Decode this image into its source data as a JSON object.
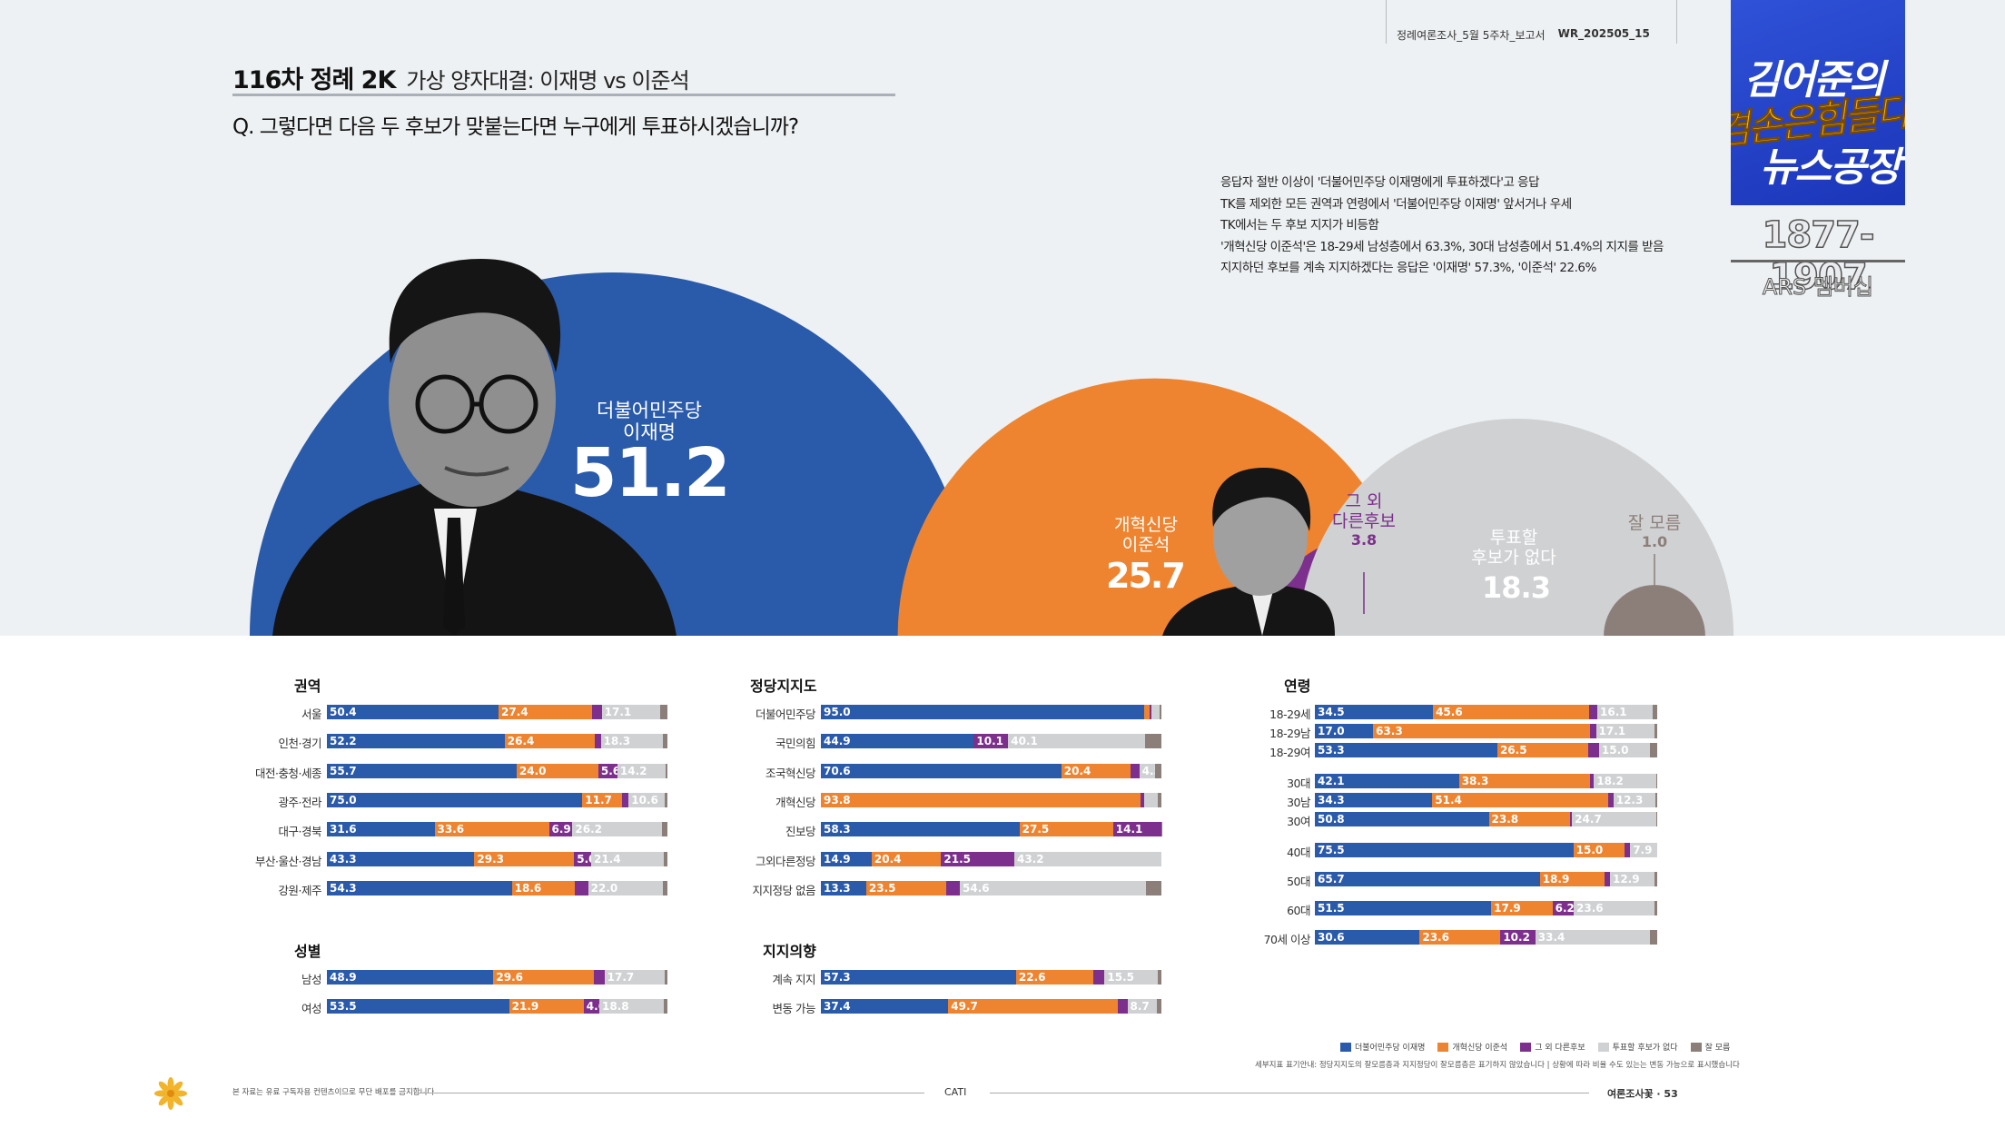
{
  "header": {
    "meta_left": "정례여론조사_5월 5주차_보고서",
    "meta_right": "WR_202505_15",
    "title_main": "116차 정례 2K",
    "title_sub": "가상 양자대결: 이재명 vs 이준석",
    "question": "Q. 그렇다면 다음 두 후보가 맞붙는다면 누구에게 투표하시겠습니까?"
  },
  "summary": [
    "응답자 절반 이상이 '더불어민주당 이재명에게 투표하겠다'고 응답",
    "TK를 제외한 모든 권역과 연령에서 '더불어민주당 이재명' 앞서거나 우세",
    "TK에서는 두 후보 지지가 비등함",
    "'개혁신당 이준석'은 18-29세 남성층에서 63.3%, 30대 남성층에서 51.4%의 지지를 받음",
    "지지하던 후보를 계속 지지하겠다는 응답은 '이재명' 57.3%, '이준석' 22.6%"
  ],
  "logo": {
    "line1": "김어준의",
    "line2": "겸손은힘들다",
    "line3": "뉴스공장",
    "years": "1877-1907",
    "membership": "ARS 멤버십"
  },
  "colors": {
    "lee_jm": "#2a5aaa",
    "lee_js": "#ee8430",
    "other": "#7d2f8d",
    "none": "#cfd1d3",
    "unsure": "#8c7f79",
    "top_bg": "#eef1f3"
  },
  "icons": {
    "footer": "flower-icon",
    "portrait_left": "portrait-lee-jaemyung",
    "portrait_right": "portrait-lee-junseok"
  },
  "main_result": {
    "lee_jm": {
      "party": "더불어민주당",
      "name": "이재명",
      "value": "51.2"
    },
    "lee_js": {
      "party": "개혁신당",
      "name": "이준석",
      "value": "25.7"
    },
    "other": {
      "label1": "그 외",
      "label2": "다른후보",
      "value": "3.8"
    },
    "none": {
      "label1": "투표할",
      "label2": "후보가 없다",
      "value": "18.3"
    },
    "unsure": {
      "label": "잘 모름",
      "value": "1.0"
    }
  },
  "chart_data": {
    "type": "bar",
    "stacked": true,
    "orientation": "horizontal",
    "total": 100,
    "overall": {
      "series": [
        {
          "name": "더불어민주당 이재명",
          "value": 51.2
        },
        {
          "name": "개혁신당 이준석",
          "value": 25.7
        },
        {
          "name": "그 외 다른후보",
          "value": 3.8
        },
        {
          "name": "투표할 후보가 없다",
          "value": 18.3
        },
        {
          "name": "잘 모름",
          "value": 1.0
        }
      ]
    },
    "groups": [
      {
        "title": "권역",
        "rows": [
          {
            "label": "서울",
            "values": [
              50.4,
              27.4,
              2.9,
              17.1,
              2.2
            ]
          },
          {
            "label": "인천·경기",
            "values": [
              52.2,
              26.4,
              1.8,
              18.3,
              1.3
            ]
          },
          {
            "label": "대전·충청·세종",
            "values": [
              55.7,
              24.0,
              5.6,
              14.2,
              0.5
            ]
          },
          {
            "label": "광주·전라",
            "values": [
              75.0,
              11.7,
              1.9,
              10.6,
              0.8
            ]
          },
          {
            "label": "대구·경북",
            "values": [
              31.6,
              33.6,
              6.9,
              26.2,
              1.7
            ]
          },
          {
            "label": "부산·울산·경남",
            "values": [
              43.3,
              29.3,
              5.0,
              21.4,
              1.0
            ]
          },
          {
            "label": "강원·제주",
            "values": [
              54.3,
              18.6,
              3.8,
              22.0,
              1.3
            ]
          }
        ]
      },
      {
        "title": "성별",
        "rows": [
          {
            "label": "남성",
            "values": [
              48.9,
              29.6,
              3.0,
              17.7,
              0.8
            ]
          },
          {
            "label": "여성",
            "values": [
              53.5,
              21.9,
              4.6,
              18.8,
              1.2
            ]
          }
        ]
      },
      {
        "title": "정당지지도",
        "rows": [
          {
            "label": "더불어민주당",
            "values": [
              95.0,
              1.5,
              0.5,
              2.5,
              0.5
            ]
          },
          {
            "label": "국민의힘",
            "values": [
              44.9,
              0,
              10.1,
              40.1,
              4.9
            ]
          },
          {
            "label": "조국혁신당",
            "values": [
              70.6,
              20.4,
              2.5,
              4.5,
              2.0
            ]
          },
          {
            "label": "개혁신당",
            "values": [
              0,
              93.8,
              1.0,
              4.2,
              1.0
            ]
          },
          {
            "label": "진보당",
            "values": [
              58.3,
              27.5,
              14.1,
              0,
              0.1
            ]
          },
          {
            "label": "그외다른정당",
            "values": [
              14.9,
              20.4,
              21.5,
              43.2,
              0
            ]
          },
          {
            "label": "지지정당 없음",
            "values": [
              13.3,
              23.5,
              4.0,
              54.6,
              4.6
            ]
          }
        ]
      },
      {
        "title": "지지의향",
        "rows": [
          {
            "label": "계속 지지",
            "values": [
              57.3,
              22.6,
              3.4,
              15.5,
              1.2
            ]
          },
          {
            "label": "변동 가능",
            "values": [
              37.4,
              49.7,
              2.9,
              8.7,
              1.3
            ]
          }
        ]
      },
      {
        "title": "연령",
        "rows": [
          {
            "label": "18-29세",
            "values": [
              34.5,
              45.6,
              2.4,
              16.1,
              1.4
            ]
          },
          {
            "label": "18-29남",
            "values": [
              17.0,
              63.3,
              1.8,
              17.1,
              0.8
            ]
          },
          {
            "label": "18-29여",
            "values": [
              53.3,
              26.5,
              3.2,
              15.0,
              2.0
            ]
          },
          {
            "label": "30대",
            "values": [
              42.1,
              38.3,
              1.1,
              18.2,
              0.3
            ]
          },
          {
            "label": "30남",
            "values": [
              34.3,
              51.4,
              1.5,
              12.3,
              0.5
            ]
          },
          {
            "label": "30여",
            "values": [
              50.8,
              23.8,
              0.5,
              24.7,
              0.2
            ]
          },
          {
            "label": "40대",
            "values": [
              75.5,
              15.0,
              1.6,
              7.9,
              0
            ]
          },
          {
            "label": "50대",
            "values": [
              65.7,
              18.9,
              1.6,
              12.9,
              0.9
            ]
          },
          {
            "label": "60대",
            "values": [
              51.5,
              17.9,
              6.2,
              23.6,
              0.8
            ]
          },
          {
            "label": "70세 이상",
            "values": [
              30.6,
              23.6,
              10.2,
              33.4,
              2.2
            ]
          }
        ]
      }
    ]
  },
  "legend": [
    {
      "label": "더불어민주당 이재명"
    },
    {
      "label": "개혁신당 이준석"
    },
    {
      "label": "그 외 다른후보"
    },
    {
      "label": "투표할 후보가 없다"
    },
    {
      "label": "잘 모름"
    }
  ],
  "footnote": "세부지표 표기안내: 정당지지도의 잘모름층과 지지정당이 잘모름층은 표기하지 않았습니다 | 상황에 따라 비율 수도 있는는 변동 가능으로 표시했습니다",
  "footer": {
    "note": "본 자료는 유료 구독자용 컨텐츠이므로 무단 배포를 금지합니다",
    "center": "CATI",
    "right": "여론조사꽃 · 53"
  }
}
